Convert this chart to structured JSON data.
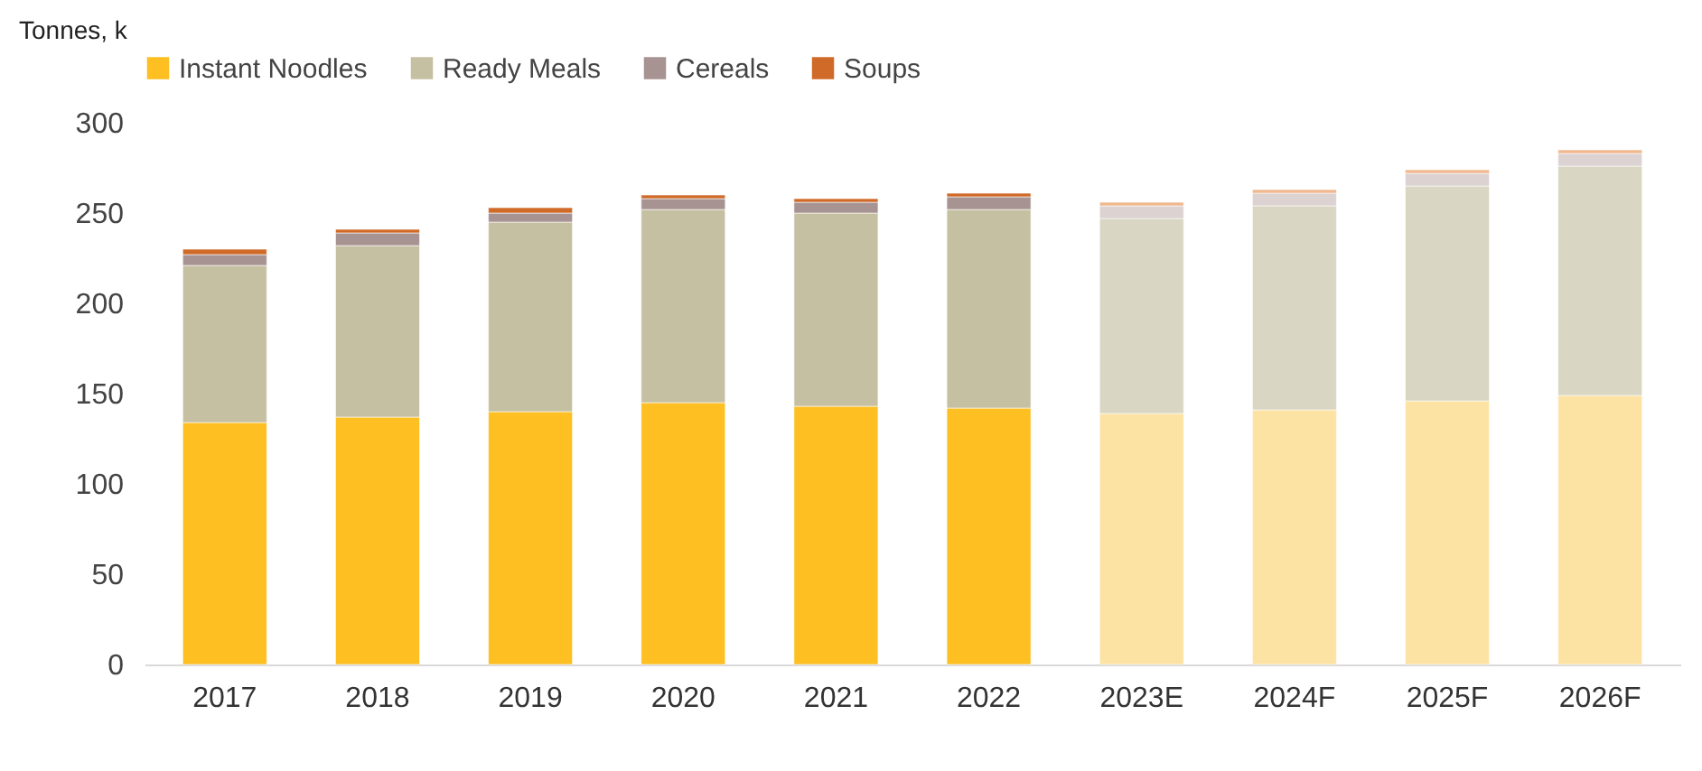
{
  "chart_data": {
    "type": "bar",
    "stacked": true,
    "ylabel": "Tonnes, k",
    "legend": "top",
    "grid": false,
    "categories": [
      "2017",
      "2018",
      "2019",
      "2020",
      "2021",
      "2022",
      "2023E",
      "2024F",
      "2025F",
      "2026F"
    ],
    "ylim": [
      0,
      300
    ],
    "yticks": [
      0,
      50,
      100,
      150,
      200,
      250,
      300
    ],
    "series": [
      {
        "name": "Instant Noodles",
        "color": "#fdbf21",
        "colors": [
          "#fdbf21",
          "#fdbf21",
          "#fdbf21",
          "#fdbf21",
          "#fdbf21",
          "#fdbf21",
          "#fde3a3",
          "#fde3a3",
          "#fde3a3",
          "#fde3a3"
        ],
        "values": [
          134,
          137,
          140,
          145,
          143,
          142,
          139,
          141,
          146,
          149
        ]
      },
      {
        "name": "Ready Meals",
        "color": "#c6c0a3",
        "colors": [
          "#c6c0a3",
          "#c6c0a3",
          "#c6c0a3",
          "#c6c0a3",
          "#c6c0a3",
          "#c6c0a3",
          "#d9d6c3",
          "#d9d6c3",
          "#d9d6c3",
          "#d9d6c3"
        ],
        "values": [
          87,
          95,
          105,
          107,
          107,
          110,
          108,
          113,
          119,
          127
        ]
      },
      {
        "name": "Cereals",
        "color": "#a79392",
        "colors": [
          "#a79392",
          "#a79392",
          "#a79392",
          "#a79392",
          "#a79392",
          "#a79392",
          "#dcd2d2",
          "#dcd2d2",
          "#dcd2d2",
          "#dcd2d2"
        ],
        "values": [
          6,
          7,
          5,
          6,
          6,
          7,
          7,
          7,
          7,
          7
        ]
      },
      {
        "name": "Soups",
        "color": "#d06a28",
        "colors": [
          "#d06a28",
          "#d06a28",
          "#d06a28",
          "#d06a28",
          "#d06a28",
          "#d06a28",
          "#f0b88e",
          "#f0b88e",
          "#f0b88e",
          "#f0b88e"
        ],
        "values": [
          3,
          2,
          3,
          2,
          2,
          2,
          2,
          2,
          2,
          2
        ]
      }
    ]
  }
}
